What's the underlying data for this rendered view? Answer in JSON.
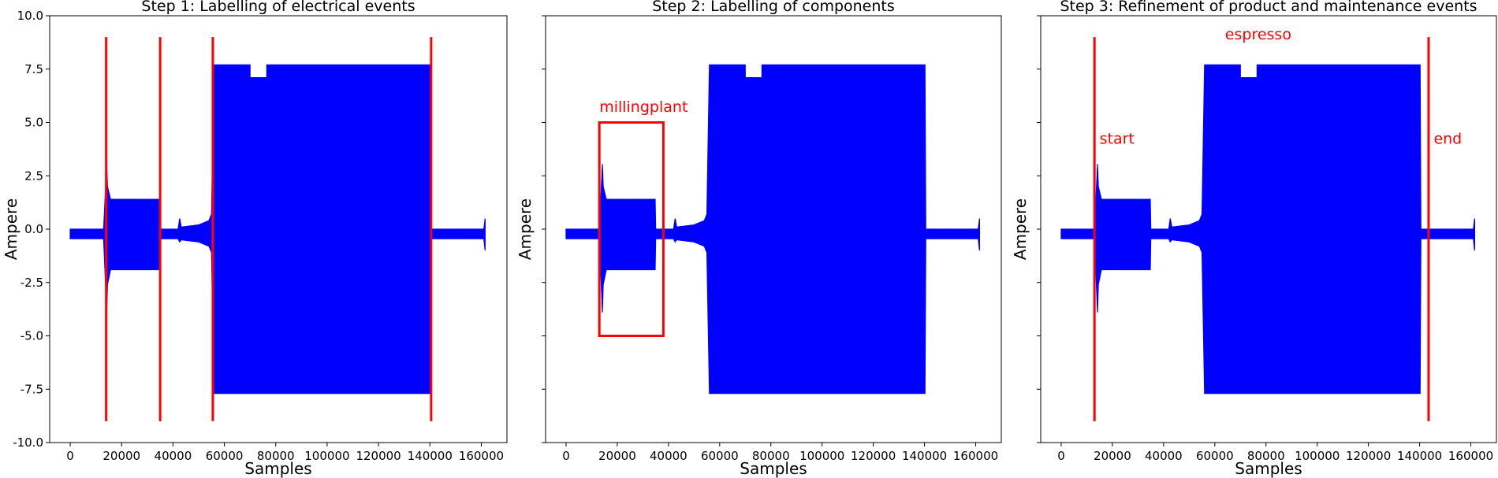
{
  "chart_data": [
    {
      "type": "line",
      "title": "Step 1: Labelling of electrical events",
      "xlabel": "Samples",
      "ylabel": "Ampere",
      "xlim": [
        -8000,
        170000
      ],
      "ylim": [
        -10,
        10
      ],
      "xticks": [
        0,
        20000,
        40000,
        60000,
        80000,
        100000,
        120000,
        140000,
        160000
      ],
      "yticks": [
        -10.0,
        -7.5,
        -5.0,
        -2.5,
        0.0,
        2.5,
        5.0,
        7.5,
        10.0
      ],
      "show_ytick_labels": true,
      "grid": false,
      "colors": {
        "signal": "#0000ff",
        "annotation": "#ff0000"
      },
      "event_lines": [
        {
          "x": 14000,
          "y_range": [
            -9,
            9
          ]
        },
        {
          "x": 35000,
          "y_range": [
            -9,
            9
          ]
        },
        {
          "x": 55500,
          "y_range": [
            -9,
            9
          ]
        },
        {
          "x": 140500,
          "y_range": [
            -9,
            9
          ]
        }
      ],
      "boxes": [],
      "labels": []
    },
    {
      "type": "line",
      "title": "Step 2: Labelling of components",
      "xlabel": "Samples",
      "ylabel": "Ampere",
      "xlim": [
        -8000,
        170000
      ],
      "ylim": [
        -10,
        10
      ],
      "xticks": [
        0,
        20000,
        40000,
        60000,
        80000,
        100000,
        120000,
        140000,
        160000
      ],
      "yticks": [
        -10.0,
        -7.5,
        -5.0,
        -2.5,
        0.0,
        2.5,
        5.0,
        7.5,
        10.0
      ],
      "show_ytick_labels": false,
      "grid": false,
      "colors": {
        "signal": "#0000ff",
        "annotation": "#ff0000"
      },
      "event_lines": [],
      "boxes": [
        {
          "label": "millingplant",
          "x0": 13000,
          "x1": 38000,
          "y0": -5,
          "y1": 5
        }
      ],
      "labels": [
        {
          "text": "millingplant",
          "x": 13000,
          "y": 5.5
        }
      ]
    },
    {
      "type": "line",
      "title": "Step 3: Refinement of product and maintenance events",
      "xlabel": "Samples",
      "ylabel": "Ampere",
      "xlim": [
        -8000,
        170000
      ],
      "ylim": [
        -10,
        10
      ],
      "xticks": [
        0,
        20000,
        40000,
        60000,
        80000,
        100000,
        120000,
        140000,
        160000
      ],
      "yticks": [
        -10.0,
        -7.5,
        -5.0,
        -2.5,
        0.0,
        2.5,
        5.0,
        7.5,
        10.0
      ],
      "show_ytick_labels": false,
      "grid": false,
      "colors": {
        "signal": "#0000ff",
        "annotation": "#ff0000"
      },
      "event_lines": [
        {
          "x": 13000,
          "y_range": [
            -9,
            9
          ]
        },
        {
          "x": 143500,
          "y_range": [
            -9,
            9
          ]
        }
      ],
      "boxes": [],
      "labels": [
        {
          "text": "start",
          "x": 15000,
          "y": 4.0
        },
        {
          "text": "end",
          "x": 145500,
          "y": 4.0
        },
        {
          "text": "espresso",
          "x": 64000,
          "y": 8.9
        }
      ]
    }
  ],
  "signal": {
    "description_points": "shared current waveform drawn in all three panels (min/max envelope, Ampere vs Samples)",
    "idle": {
      "x0": 0,
      "x1": 13000,
      "min": -0.45,
      "max": 0.0
    },
    "spike_x": 14200,
    "spike_max": 3.05,
    "spike_min": -3.9,
    "mill": {
      "x0": 14500,
      "x1": 34800,
      "min": -1.9,
      "max": 1.4
    },
    "idle2": {
      "x0": 35000,
      "x1": 55000,
      "min": -0.45,
      "max": 0.0
    },
    "heat": {
      "x0": 56000,
      "x1": 140200,
      "min": -7.7,
      "max": 7.7
    },
    "dip": {
      "x0": 70000,
      "x1": 76500,
      "max": 7.1
    },
    "idle3": {
      "x0": 140500,
      "x1": 161000,
      "min": -0.45,
      "max": 0.0
    },
    "end_spike_x": 161500,
    "end_spike_max": 0.5,
    "end_spike_min": -1.0
  }
}
